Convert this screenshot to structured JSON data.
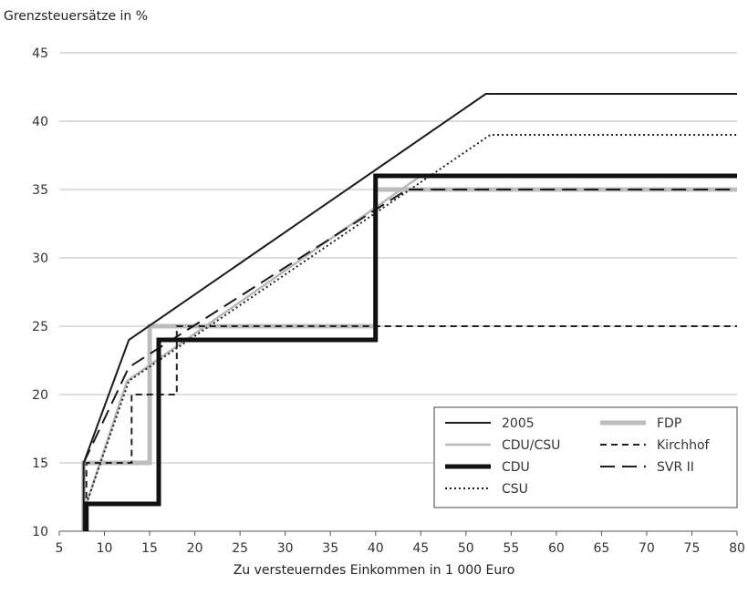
{
  "chart_data": {
    "type": "line",
    "title": "",
    "ylabel": "Grenzsteuersätze in %",
    "xlabel": "Zu versteuerndes Einkommen in 1 000 Euro",
    "xlim": [
      5,
      80
    ],
    "ylim": [
      10,
      45
    ],
    "xticks": [
      5,
      10,
      15,
      20,
      25,
      30,
      35,
      40,
      45,
      50,
      55,
      60,
      65,
      70,
      75,
      80
    ],
    "yticks": [
      10,
      15,
      20,
      25,
      30,
      35,
      40,
      45
    ],
    "grid": "horizontal",
    "legend": "bottom-right",
    "series": [
      {
        "name": "2005",
        "color": "#1a1a1a",
        "style": "solid-thin",
        "x": [
          7.7,
          7.7,
          12.7,
          52.2,
          80
        ],
        "y": [
          10,
          15,
          24,
          42,
          42
        ]
      },
      {
        "name": "CDU/CSU",
        "color": "#b8b8b8",
        "style": "solid-medium",
        "x": [
          8,
          8,
          12.5,
          45,
          80
        ],
        "y": [
          10,
          12,
          21,
          36,
          36
        ]
      },
      {
        "name": "CDU",
        "color": "#111111",
        "style": "solid-thick",
        "x": [
          8,
          8,
          16,
          16,
          40,
          40,
          80
        ],
        "y": [
          10,
          12,
          12,
          24,
          24,
          36,
          36
        ]
      },
      {
        "name": "CSU",
        "color": "#222222",
        "style": "dotted",
        "x": [
          7.7,
          8,
          12.7,
          52.7,
          80
        ],
        "y": [
          10,
          12,
          21,
          39,
          39
        ]
      },
      {
        "name": "FDP",
        "color": "#bdbdbd",
        "style": "solid-thickest",
        "x": [
          7.7,
          7.7,
          15,
          15,
          40,
          40,
          80
        ],
        "y": [
          10,
          15,
          15,
          25,
          25,
          35,
          35
        ]
      },
      {
        "name": "Kirchhof",
        "color": "#222222",
        "style": "short-dash",
        "x": [
          8,
          8,
          13,
          13,
          18,
          18,
          80
        ],
        "y": [
          10,
          15,
          15,
          20,
          20,
          25,
          25
        ]
      },
      {
        "name": "SVR II",
        "color": "#1a1a1a",
        "style": "long-dash",
        "x": [
          7.7,
          12.7,
          43.5,
          80
        ],
        "y": [
          15,
          22,
          35,
          35
        ]
      }
    ]
  }
}
